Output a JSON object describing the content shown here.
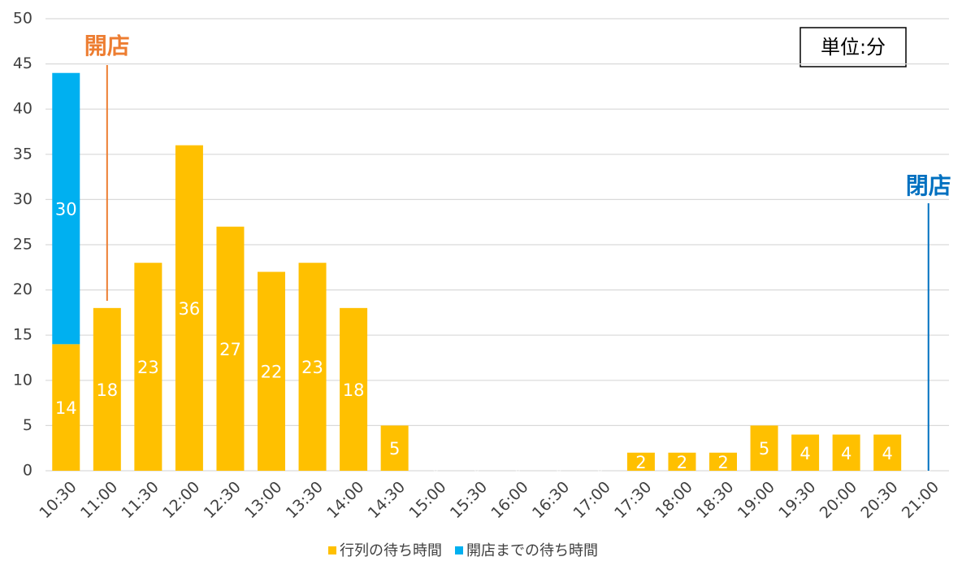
{
  "chart_data": {
    "type": "stacked_bar",
    "categories": [
      "10:30",
      "11:00",
      "11:30",
      "12:00",
      "12:30",
      "13:00",
      "13:30",
      "14:00",
      "14:30",
      "15:00",
      "15:30",
      "16:00",
      "16:30",
      "17:00",
      "17:30",
      "18:00",
      "18:30",
      "19:00",
      "19:30",
      "20:00",
      "20:30",
      "21:00"
    ],
    "series": [
      {
        "name": "行列の待ち時間",
        "color": "#ffc000",
        "values": [
          14,
          18,
          23,
          36,
          27,
          22,
          23,
          18,
          5,
          0,
          0,
          0,
          0,
          0,
          2,
          2,
          2,
          5,
          4,
          4,
          4,
          0
        ]
      },
      {
        "name": "開店までの待ち時間",
        "color": "#00b0f0",
        "values": [
          30,
          null,
          null,
          null,
          null,
          null,
          null,
          null,
          null,
          null,
          null,
          null,
          null,
          null,
          null,
          null,
          null,
          null,
          null,
          null,
          null,
          null
        ]
      }
    ],
    "ylim": [
      0,
      50
    ],
    "yticks": [
      0,
      5,
      10,
      15,
      20,
      25,
      30,
      35,
      40,
      45,
      50
    ],
    "grid": true,
    "annotations": [
      {
        "text": "開店",
        "color": "#ed7d31"
      },
      {
        "text": "閉店",
        "color": "#0070c0"
      }
    ],
    "unit_label": "単位:分"
  }
}
